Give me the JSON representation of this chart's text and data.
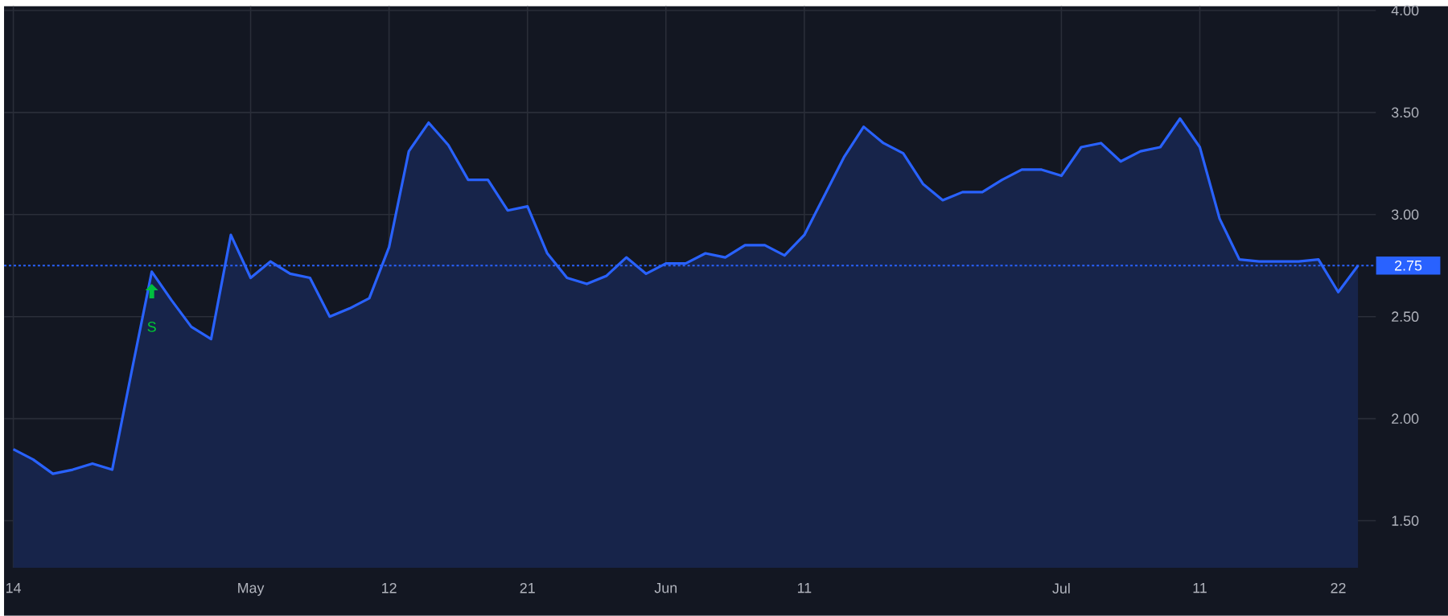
{
  "chart_data": {
    "type": "area",
    "categories": [
      "14",
      null,
      null,
      null,
      null,
      null,
      null,
      null,
      null,
      null,
      null,
      null,
      "May",
      null,
      null,
      null,
      null,
      null,
      null,
      "12",
      null,
      null,
      null,
      null,
      null,
      null,
      "21",
      null,
      null,
      null,
      null,
      null,
      null,
      "Jun",
      null,
      null,
      null,
      null,
      null,
      null,
      "11",
      null,
      null,
      null,
      null,
      null,
      null,
      null,
      null,
      null,
      null,
      null,
      null,
      "Jul",
      null,
      null,
      null,
      null,
      null,
      null,
      "11",
      null,
      null,
      null,
      null,
      null,
      null,
      "22",
      null
    ],
    "series": [
      {
        "color": "#2962ff",
        "values": [
          1.85,
          1.8,
          1.73,
          1.75,
          1.78,
          1.75,
          2.24,
          2.72,
          2.58,
          2.45,
          2.39,
          2.9,
          2.69,
          2.77,
          2.71,
          2.69,
          2.5,
          2.54,
          2.59,
          2.84,
          3.31,
          3.45,
          3.34,
          3.17,
          3.17,
          3.02,
          3.04,
          2.81,
          2.69,
          2.66,
          2.7,
          2.79,
          2.71,
          2.76,
          2.76,
          2.81,
          2.79,
          2.85,
          2.85,
          2.8,
          2.9,
          3.09,
          3.28,
          3.43,
          3.35,
          3.3,
          3.15,
          3.07,
          3.11,
          3.11,
          3.17,
          3.22,
          3.22,
          3.19,
          3.33,
          3.35,
          3.26,
          3.31,
          3.33,
          3.47,
          3.33,
          2.98,
          2.78,
          2.77,
          2.77,
          2.77,
          2.78,
          2.62,
          2.75
        ]
      }
    ],
    "ylim": [
      1.27,
      4.02
    ],
    "yticks": [
      {
        "value": 1.5,
        "label": "1.50"
      },
      {
        "value": 2,
        "label": "2.00"
      },
      {
        "value": 2.5,
        "label": "2.50"
      },
      {
        "value": 3,
        "label": "3.00"
      },
      {
        "value": 3.5,
        "label": "3.50"
      },
      {
        "value": 4,
        "label": "4.00"
      }
    ],
    "grid": true,
    "ref_lines": [
      {
        "axis": "y",
        "value": 2.75,
        "label": "2.75",
        "color": "#2962ff",
        "line_style": "dotted"
      }
    ],
    "annotations": [
      "S"
    ]
  }
}
